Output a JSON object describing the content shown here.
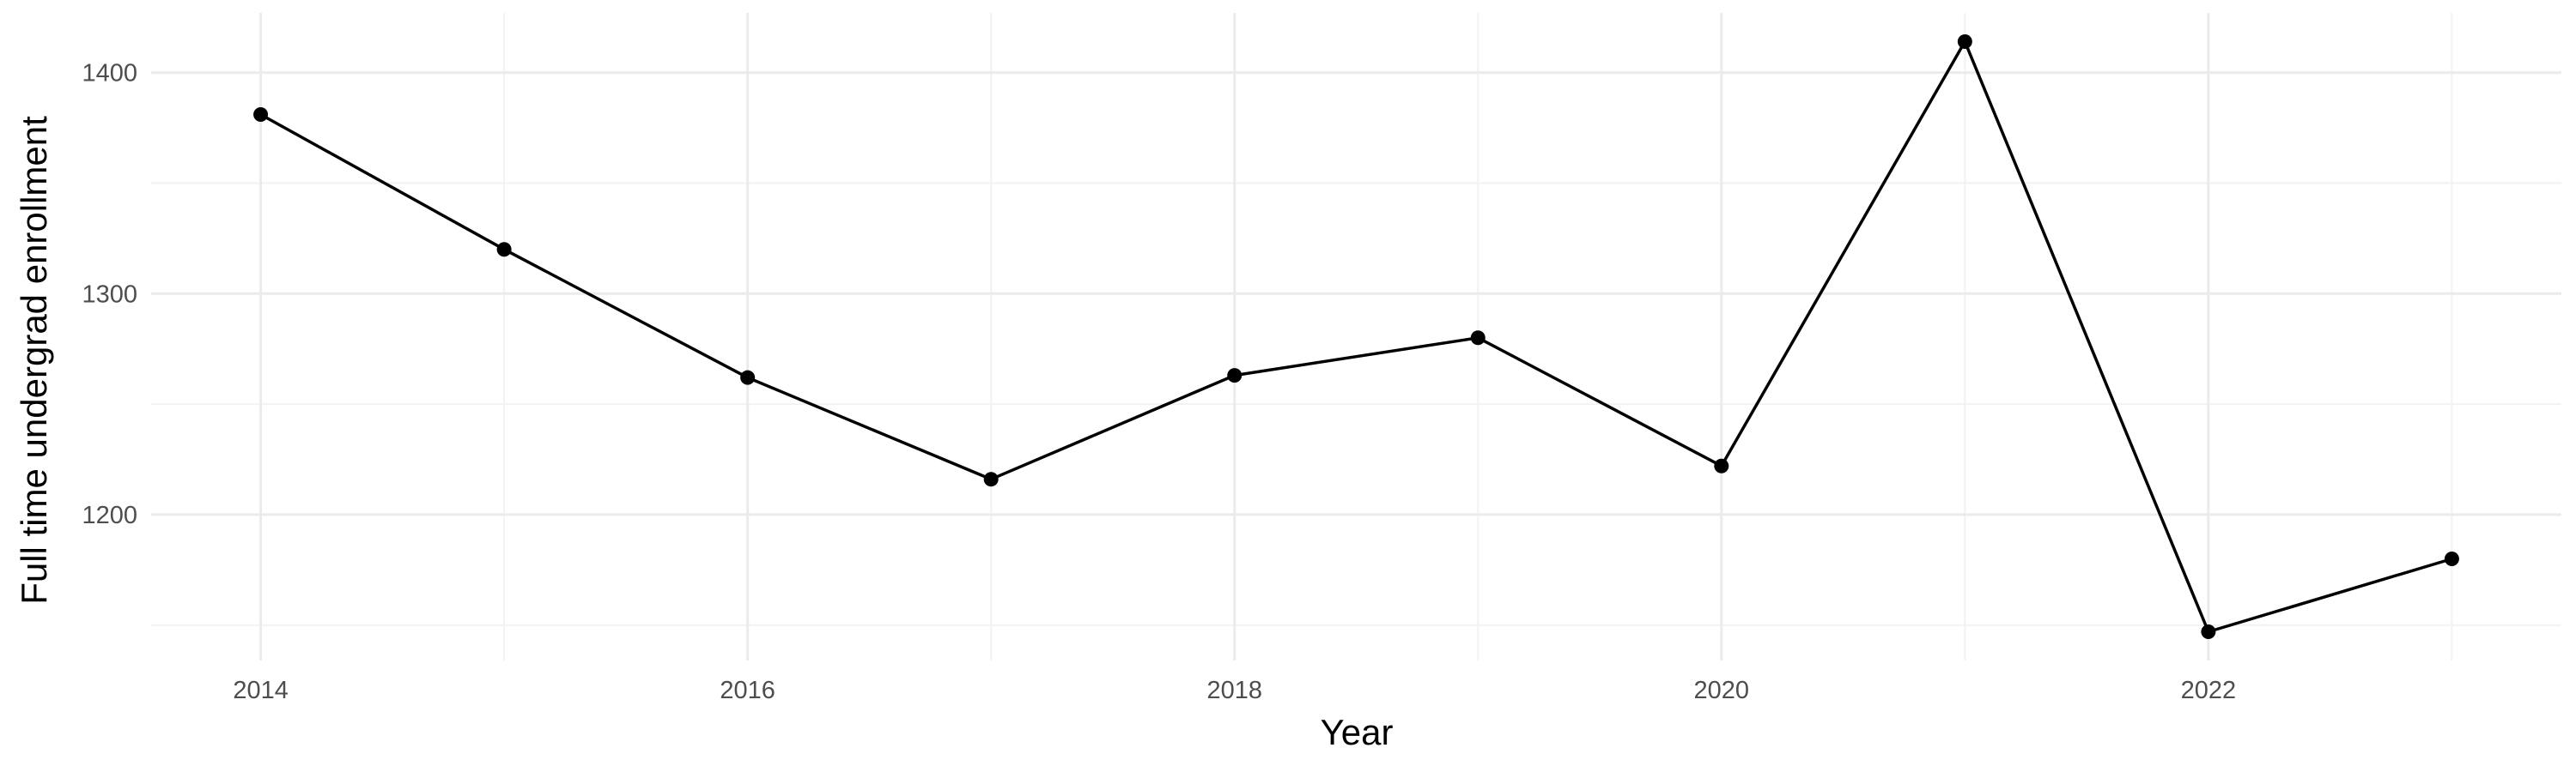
{
  "chart_data": {
    "type": "line",
    "title": "",
    "xlabel": "Year",
    "ylabel": "Full time undergrad enrollment",
    "x": [
      2014,
      2015,
      2016,
      2017,
      2018,
      2019,
      2020,
      2021,
      2022,
      2023
    ],
    "series": [
      {
        "values": [
          1381,
          1320,
          1262,
          1216,
          1263,
          1280,
          1222,
          1414,
          1147,
          1180
        ]
      }
    ],
    "xlim": [
      2013.55,
      2023.45
    ],
    "ylim": [
      1134,
      1427
    ],
    "x_ticks": [
      "2014",
      "2016",
      "2018",
      "2020",
      "2022"
    ],
    "y_ticks": [
      "1200",
      "1300",
      "1400"
    ],
    "grid": true,
    "legend": "none",
    "colors": {
      "line": "#000000",
      "point": "#000000",
      "grid_major": "#ebebeb",
      "grid_minor": "#f2f2f2",
      "tick_text": "#4d4d4d",
      "background": "#ffffff"
    }
  }
}
